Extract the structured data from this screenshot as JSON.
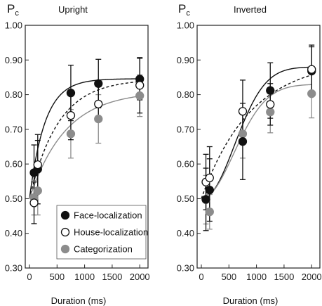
{
  "chart_data": [
    {
      "type": "scatter",
      "title": "Upright",
      "ylabel": "Pc",
      "xlabel": "Duration (ms)",
      "xlim": [
        0,
        2150
      ],
      "ylim": [
        0.3,
        1.0
      ],
      "xticks": [
        0,
        500,
        1000,
        1500,
        2000
      ],
      "yticks": [
        0.3,
        0.4,
        0.5,
        0.6,
        0.7,
        0.8,
        0.9,
        1.0
      ],
      "grid": false,
      "legend_position": "bottom-right",
      "series": [
        {
          "name": "Face-localization",
          "color": "#111111",
          "marker": "filled-black",
          "fit_line": "solid-black",
          "x": [
            83,
            150,
            750,
            1250,
            2000
          ],
          "y": [
            0.575,
            0.585,
            0.805,
            0.832,
            0.845
          ],
          "err": [
            0.08,
            0.1,
            0.08,
            0.07,
            0.06
          ],
          "fit": {
            "base": 0.5,
            "amp": 0.346,
            "tau": 280
          }
        },
        {
          "name": "House-localization",
          "color": "#111111",
          "marker": "open-white",
          "fit_line": "dashed-black",
          "x": [
            83,
            150,
            750,
            1250,
            2000
          ],
          "y": [
            0.488,
            0.598,
            0.74,
            0.773,
            0.827
          ],
          "err": [
            0.06,
            0.07,
            0.07,
            0.05,
            0.08
          ],
          "fit": {
            "base": 0.5,
            "amp": 0.345,
            "tau": 520
          }
        },
        {
          "name": "Categorization",
          "color": "#8c8c8c",
          "marker": "filled-gray",
          "fit_line": "solid-gray",
          "x": [
            83,
            150,
            750,
            1250,
            2000
          ],
          "y": [
            0.503,
            0.523,
            0.687,
            0.73,
            0.797
          ],
          "err": [
            0.05,
            0.07,
            0.07,
            0.07,
            0.06
          ],
          "fit": {
            "base": 0.5,
            "amp": 0.31,
            "tau": 650
          }
        }
      ]
    },
    {
      "type": "scatter",
      "title": "Inverted",
      "ylabel": "Pc",
      "xlabel": "Duration (ms)",
      "xlim": [
        0,
        2150
      ],
      "ylim": [
        0.3,
        1.0
      ],
      "xticks": [
        0,
        500,
        1000,
        1500,
        2000
      ],
      "yticks": [
        0.3,
        0.4,
        0.5,
        0.6,
        0.7,
        0.8,
        0.9,
        1.0
      ],
      "grid": false,
      "series": [
        {
          "name": "Face-localization",
          "color": "#111111",
          "marker": "filled-black",
          "fit_line": "solid-black",
          "x": [
            83,
            150,
            750,
            1250,
            2000
          ],
          "y": [
            0.498,
            0.525,
            0.665,
            0.812,
            0.868
          ],
          "err": [
            0.09,
            0.09,
            0.11,
            0.08,
            0.07
          ],
          "fit": {
            "base": 0.5,
            "amp": 0.38,
            "tau": 820,
            "shape": 2.1
          }
        },
        {
          "name": "House-localization",
          "color": "#111111",
          "marker": "open-white",
          "fit_line": "dashed-black",
          "x": [
            83,
            150,
            750,
            1250,
            2000
          ],
          "y": [
            0.548,
            0.56,
            0.752,
            0.772,
            0.873
          ],
          "err": [
            0.08,
            0.09,
            0.09,
            0.06,
            0.07
          ],
          "fit": {
            "base": 0.5,
            "amp": 0.4,
            "tau": 900
          }
        },
        {
          "name": "Categorization",
          "color": "#8c8c8c",
          "marker": "filled-gray",
          "fit_line": "solid-gray",
          "x": [
            83,
            150,
            750,
            1250,
            2000
          ],
          "y": [
            0.497,
            0.462,
            0.687,
            0.75,
            0.803
          ],
          "err": [
            0.07,
            0.05,
            0.07,
            0.06,
            0.07
          ],
          "fit": {
            "base": 0.5,
            "amp": 0.33,
            "tau": 830,
            "shape": 2.0
          }
        }
      ]
    }
  ]
}
